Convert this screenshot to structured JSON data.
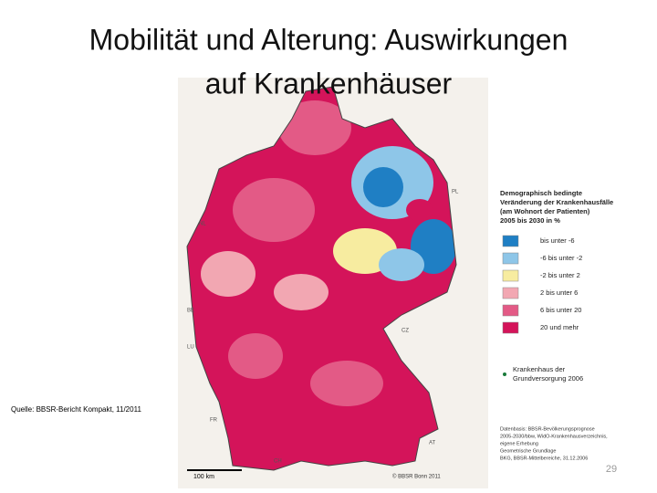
{
  "slide": {
    "title_lines": [
      "Mobilität und Alterung: Auswirkungen",
      "auf Krankenhäuser"
    ],
    "source": "Quelle: BBSR-Bericht Kompakt, 11/2011",
    "page_number": "29",
    "map": {
      "country_labels": [
        "NL",
        "BE",
        "LU",
        "FR",
        "CH",
        "AT",
        "CZ",
        "PL"
      ],
      "scale_label": "100 km",
      "copyright": "© BBSR Bonn 2011"
    },
    "legend": {
      "title_lines": [
        "Demographisch bedingte",
        "Veränderung der Krankenhausfälle",
        "(am Wohnort der Patienten)",
        "2005 bis 2030 in %"
      ],
      "items": [
        {
          "label": "bis unter  -6",
          "color": "#1f7fc4"
        },
        {
          "label": "-6 bis unter  -2",
          "color": "#8ec6e8"
        },
        {
          "label": "-2 bis unter  2",
          "color": "#f7eca0"
        },
        {
          "label": "2 bis unter  6",
          "color": "#f2a7b2"
        },
        {
          "label": "6 bis unter 20",
          "color": "#e35a86"
        },
        {
          "label": "20 und mehr",
          "color": "#d4145a"
        }
      ],
      "hospital_lines": [
        "Krankenhaus der",
        "Grundversorgung 2006"
      ],
      "basis_lines": [
        "Datenbasis: BBSR-Bevölkerungsprognose",
        "2005-2030/bbw, WidO-Krankenhausverzeichnis,",
        "eigene Erhebung",
        "Geometrische Grundlage",
        "BKG, BBSR-Mittelbereiche, 31.12.2006"
      ]
    }
  }
}
